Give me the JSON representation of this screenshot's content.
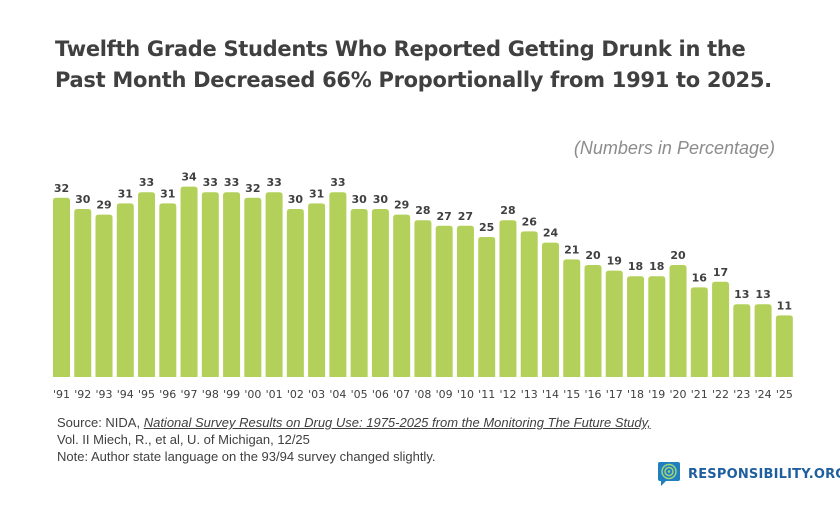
{
  "title_line1": "Twelfth Grade Students Who Reported Getting Drunk in the",
  "title_line2": "Past Month Decreased 66% Proportionally from 1991 to 2025.",
  "units_note": "(Numbers in Percentage)",
  "source": {
    "prefix": "Source: NIDA, ",
    "link": "National Survey Results on Drug Use: 1975-2025 from the Monitoring The Future Study,",
    "line2": "Vol. II Miech, R., et al, U. of Michigan, 12/25",
    "line3": "Note: Author state language on the 93/94 survey changed slightly."
  },
  "logo": "RESPONSIBILITY.ORG",
  "colors": {
    "bar": "#b3d15a",
    "text": "#404040",
    "logo": "#1f5f9e"
  },
  "chart_data": {
    "type": "bar",
    "categories": [
      "'91",
      "'92",
      "'93",
      "'94",
      "'95",
      "'96",
      "'97",
      "'98",
      "'99",
      "'00",
      "'01",
      "'02",
      "'03",
      "'04",
      "'05",
      "'06",
      "'07",
      "'08",
      "'09",
      "'10",
      "'11",
      "'12",
      "'13",
      "'14",
      "'15",
      "'16",
      "'17",
      "'18",
      "'19",
      "'20",
      "'21",
      "'22",
      "'23",
      "'24",
      "'25"
    ],
    "values": [
      32,
      30,
      29,
      31,
      33,
      31,
      34,
      33,
      33,
      32,
      33,
      30,
      31,
      33,
      30,
      30,
      29,
      28,
      27,
      27,
      25,
      28,
      26,
      24,
      21,
      20,
      19,
      18,
      18,
      20,
      16,
      17,
      13,
      13,
      11
    ],
    "ylim": [
      0,
      35
    ],
    "grid": false,
    "data_labels": true
  }
}
